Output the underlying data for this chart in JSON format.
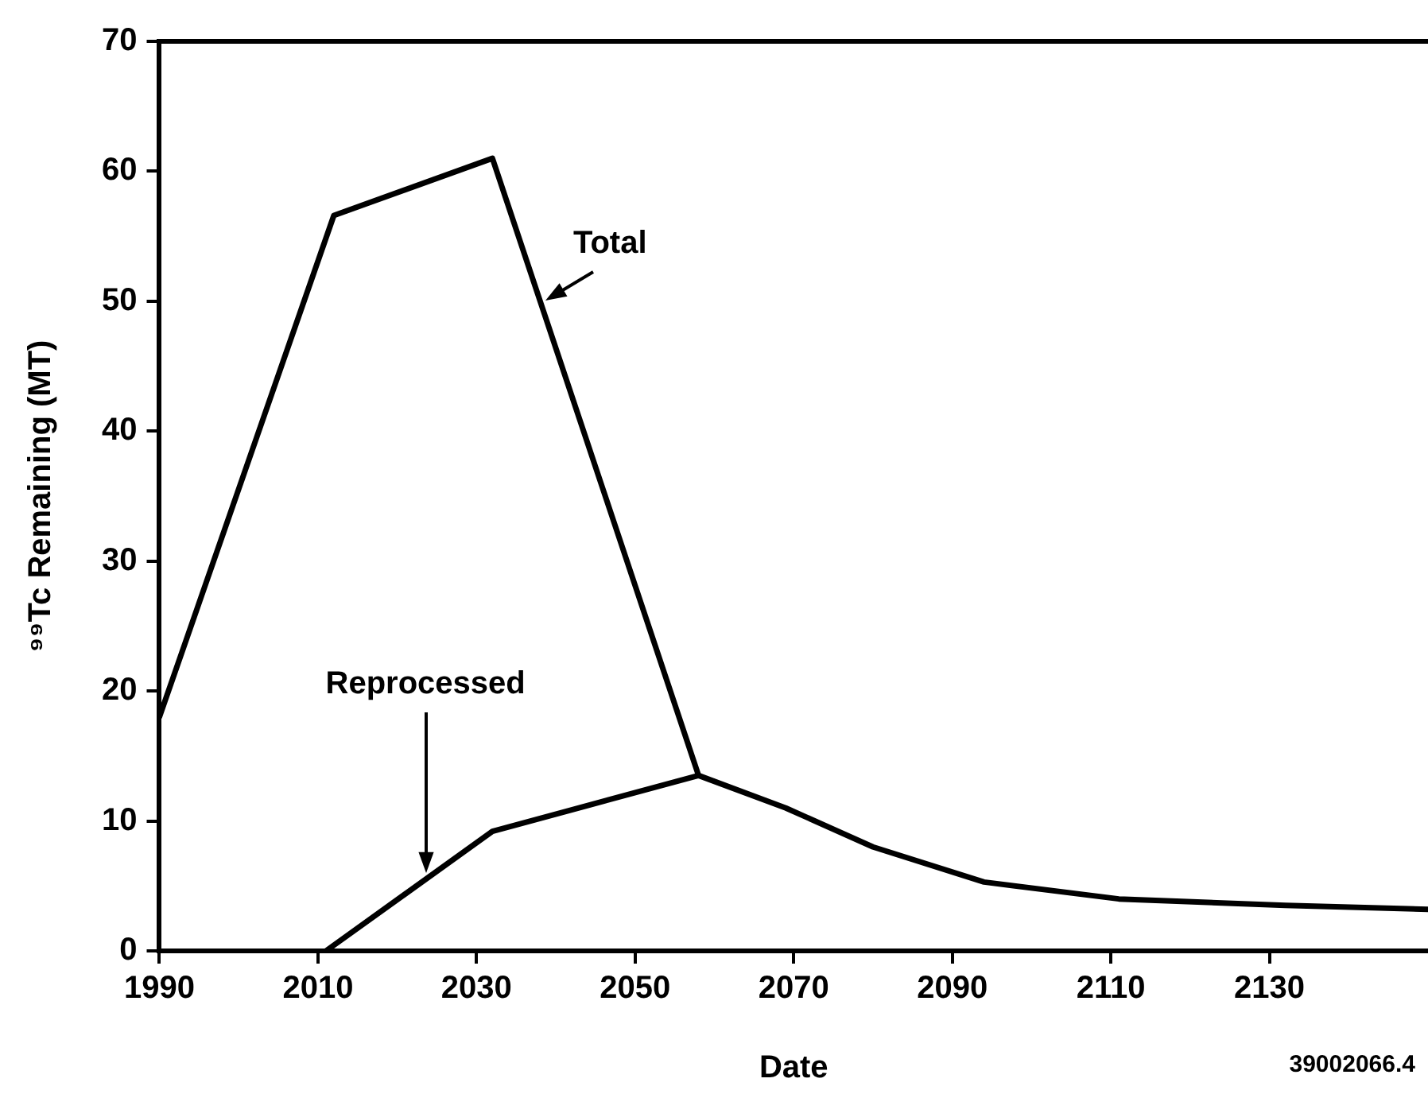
{
  "chart_data": {
    "type": "line",
    "xlabel": "Date",
    "ylabel": "⁹⁹Tc Remaining (MT)",
    "xlim": [
      1990,
      2150
    ],
    "xticks": [
      1990,
      2010,
      2030,
      2050,
      2070,
      2090,
      2110,
      2130
    ],
    "ylim": [
      0,
      70
    ],
    "yticks": [
      0,
      10,
      20,
      30,
      40,
      50,
      60,
      70
    ],
    "grid": false,
    "legend": false,
    "marker": "none",
    "line_style": "solid",
    "series": [
      {
        "name": "Total",
        "color": "#000000",
        "x": [
          1990,
          2012,
          2032,
          2058
        ],
        "values": [
          18,
          56.6,
          61,
          13.5
        ]
      },
      {
        "name": "Reprocessed",
        "color": "#000000",
        "x": [
          2011,
          2032,
          2058,
          2069,
          2080,
          2094,
          2111,
          2132,
          2150
        ],
        "values": [
          0,
          9.2,
          13.5,
          11,
          8,
          5.3,
          4,
          3.5,
          3.2
        ]
      }
    ],
    "annotations": [
      "39002066.4"
    ]
  }
}
